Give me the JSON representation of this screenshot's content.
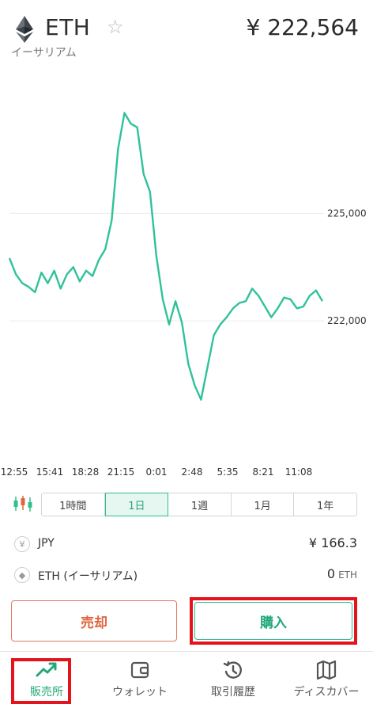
{
  "header": {
    "symbol": "ETH",
    "name": "イーサリアム",
    "price": "¥ 222,564",
    "favorite_icon": "star-outline-icon",
    "logo_icon": "ethereum-logo-icon"
  },
  "chart_data": {
    "type": "line",
    "title": "",
    "xlabel": "",
    "ylabel": "",
    "x_ticks": [
      "12:55",
      "15:41",
      "18:28",
      "21:15",
      "0:01",
      "2:48",
      "5:35",
      "8:21",
      "11:08"
    ],
    "y_ticks": [
      225000,
      222000
    ],
    "y_tick_labels": [
      "225,000",
      "222,000"
    ],
    "ylim": [
      218800,
      228300
    ],
    "grid": true,
    "line_color": "#2fc29a",
    "series": [
      {
        "x": [
          0,
          0.5,
          1,
          1.5,
          2,
          2.5,
          3,
          3.5,
          4,
          4.5,
          5,
          5.5,
          6,
          6.5,
          7,
          7.5,
          8,
          8.5,
          9,
          9.5,
          10,
          10.5,
          11,
          11.5,
          12,
          12.5,
          13,
          13.5,
          14,
          14.5,
          15,
          15.5,
          16,
          16.5,
          17,
          17.5,
          18,
          18.5,
          19,
          19.5,
          20,
          20.5,
          21,
          21.5,
          22,
          22.5,
          23,
          23.5,
          24,
          24.5
        ],
        "values": [
          223750,
          223300,
          223050,
          222950,
          222800,
          223350,
          223050,
          223400,
          222900,
          223300,
          223500,
          223100,
          223400,
          223250,
          223700,
          224000,
          224800,
          226800,
          227800,
          227500,
          227400,
          226100,
          225600,
          223800,
          222600,
          221900,
          222550,
          221950,
          220800,
          220200,
          219800,
          220700,
          221600,
          221900,
          222100,
          222350,
          222500,
          222550,
          222900,
          222700,
          222400,
          222100,
          222350,
          222650,
          222600,
          222350,
          222400,
          222700,
          222850,
          222550
        ]
      }
    ]
  },
  "range_tabs": [
    "1時間",
    "1日",
    "1週",
    "1月",
    "1年"
  ],
  "active_range": "1日",
  "balances": [
    {
      "icon_text": "¥",
      "icon": "yen-coin-icon",
      "label": "JPY",
      "value": "¥ 166.3",
      "unit": ""
    },
    {
      "icon_text": "◆",
      "icon": "ethereum-coin-icon",
      "label": "ETH (イーサリアム)",
      "value": "0",
      "unit": "ETH"
    }
  ],
  "actions": {
    "sell": "売却",
    "buy": "購入"
  },
  "nav": [
    {
      "label": "販売所",
      "icon": "trending-up-icon",
      "active": true
    },
    {
      "label": "ウォレット",
      "icon": "wallet-icon",
      "active": false
    },
    {
      "label": "取引履歴",
      "icon": "history-icon",
      "active": false
    },
    {
      "label": "ディスカバー",
      "icon": "map-icon",
      "active": false
    }
  ],
  "colors": {
    "accent": "#22a878",
    "sell": "#e0653f",
    "highlight": "#e3141b"
  }
}
